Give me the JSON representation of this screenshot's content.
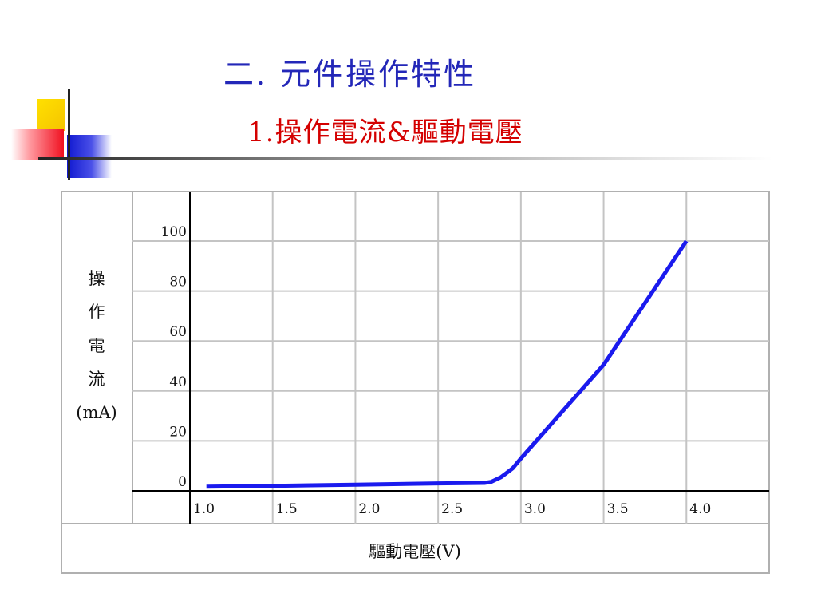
{
  "slide": {
    "heading": "二.  元件操作特性",
    "subheading": "1.操作電流&驅動電壓"
  },
  "chart_data": {
    "type": "line",
    "title": "",
    "xlabel": "驅動電壓(V)",
    "ylabel_chars": [
      "操",
      "作",
      "電",
      "流",
      "(mA)"
    ],
    "x_ticks": [
      "1.0",
      "1.5",
      "2.0",
      "2.5",
      "3.0",
      "3.5",
      "4.0"
    ],
    "y_ticks": [
      "0",
      "20",
      "40",
      "60",
      "80",
      "100"
    ],
    "xlim": [
      1.0,
      4.5
    ],
    "ylim": [
      0,
      100
    ],
    "grid": true,
    "series": [
      {
        "color": "#1a1aee",
        "x": [
          1.1,
          1.5,
          2.0,
          2.5,
          2.78,
          2.82,
          2.88,
          2.95,
          3.0,
          3.5,
          4.0
        ],
        "y": [
          1.7,
          2.0,
          2.5,
          3.0,
          3.2,
          3.6,
          5.5,
          9.0,
          13.0,
          50.5,
          100.0
        ]
      }
    ]
  }
}
